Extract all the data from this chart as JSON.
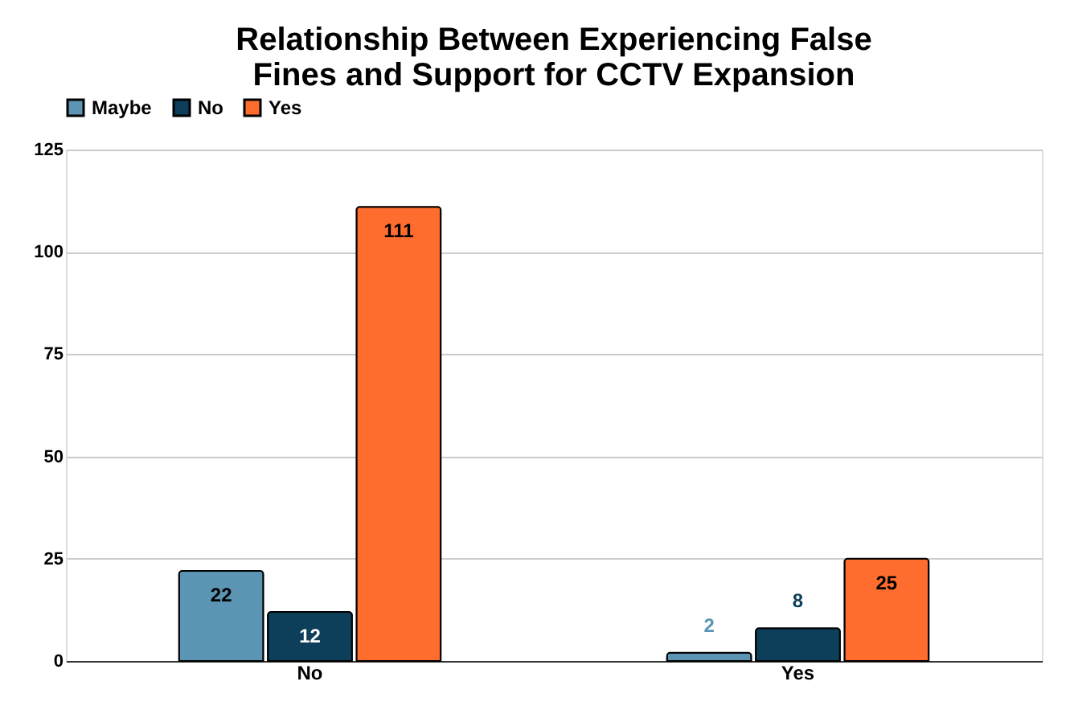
{
  "chart_data": {
    "type": "bar",
    "title": "Relationship Between Experiencing False\nFines and Support for CCTV Expansion",
    "categories": [
      "No",
      "Yes"
    ],
    "series": [
      {
        "name": "Maybe",
        "color": "#5b95b3",
        "values": [
          22,
          2
        ]
      },
      {
        "name": "No",
        "color": "#0d3e5a",
        "values": [
          12,
          8
        ]
      },
      {
        "name": "Yes",
        "color": "#ff6d2e",
        "values": [
          111,
          25
        ]
      }
    ],
    "ylim": [
      0,
      125
    ],
    "yticks": [
      0,
      25,
      50,
      75,
      100,
      125
    ],
    "grid": "y",
    "legend": "top",
    "data_labels": true
  }
}
